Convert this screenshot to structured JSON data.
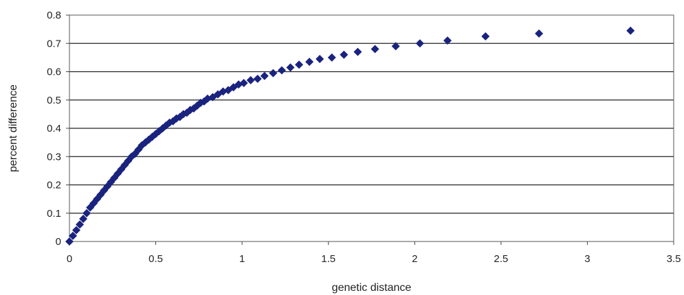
{
  "chart_data": {
    "type": "scatter",
    "title": "",
    "xlabel": "genetic distance",
    "ylabel": "percent difference",
    "xlim": [
      0,
      3.5
    ],
    "ylim": [
      0,
      0.8
    ],
    "xticks": [
      0,
      0.5,
      1,
      1.5,
      2,
      2.5,
      3,
      3.5
    ],
    "xtick_labels": [
      "0",
      "0.5",
      "1",
      "1.5",
      "2",
      "2.5",
      "3",
      "3.5"
    ],
    "yticks": [
      0,
      0.1,
      0.2,
      0.3,
      0.4,
      0.5,
      0.6,
      0.7,
      0.8
    ],
    "ytick_labels": [
      "0",
      "0.1",
      "0.2",
      "0.3",
      "0.4",
      "0.5",
      "0.6",
      "0.7",
      "0.8"
    ],
    "grid": "horizontal",
    "legend": "none",
    "marker_color": "#1a237e",
    "series": [
      {
        "x": [
          0.0,
          0.02,
          0.04,
          0.06,
          0.08,
          0.1,
          0.12,
          0.14,
          0.16,
          0.18,
          0.2,
          0.22,
          0.24,
          0.26,
          0.28,
          0.3,
          0.32,
          0.34,
          0.36,
          0.38,
          0.4,
          0.42,
          0.44,
          0.46,
          0.48,
          0.5,
          0.52,
          0.54,
          0.56,
          0.58,
          0.6,
          0.62,
          0.64,
          0.66,
          0.68,
          0.7,
          0.72,
          0.74,
          0.76,
          0.78,
          0.8,
          0.83,
          0.86,
          0.89,
          0.92,
          0.95,
          0.98,
          1.01,
          1.05,
          1.09,
          1.13,
          1.18,
          1.23,
          1.28,
          1.33,
          1.39,
          1.45,
          1.52,
          1.59,
          1.67,
          1.77,
          1.89,
          2.03,
          2.19,
          2.41,
          2.72,
          3.25
        ],
        "y": [
          0.0,
          0.02,
          0.04,
          0.06,
          0.08,
          0.1,
          0.12,
          0.135,
          0.15,
          0.165,
          0.18,
          0.195,
          0.21,
          0.225,
          0.24,
          0.255,
          0.27,
          0.285,
          0.3,
          0.31,
          0.325,
          0.34,
          0.35,
          0.36,
          0.37,
          0.38,
          0.39,
          0.4,
          0.41,
          0.42,
          0.425,
          0.435,
          0.44,
          0.45,
          0.455,
          0.465,
          0.47,
          0.48,
          0.49,
          0.495,
          0.505,
          0.51,
          0.52,
          0.53,
          0.535,
          0.545,
          0.555,
          0.56,
          0.57,
          0.575,
          0.585,
          0.595,
          0.605,
          0.615,
          0.625,
          0.635,
          0.645,
          0.65,
          0.66,
          0.67,
          0.68,
          0.69,
          0.7,
          0.71,
          0.725,
          0.735,
          0.745
        ]
      }
    ]
  }
}
